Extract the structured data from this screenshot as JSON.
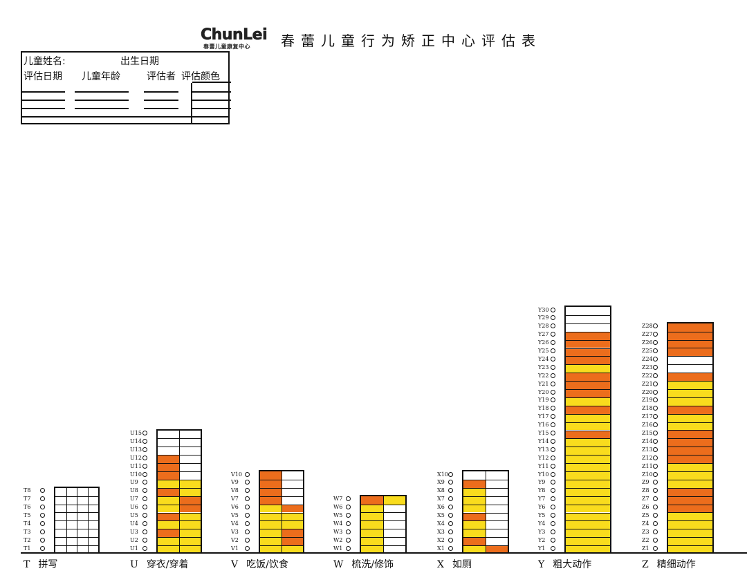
{
  "header": {
    "logo_text": "ChunLei",
    "logo_subtitle": "春蕾儿童康复中心",
    "title": "春蕾儿童行为矫正中心评估表"
  },
  "info": {
    "name_label": "儿童姓名:",
    "birth_label": "出生日期",
    "date_label": "评估日期",
    "age_label": "儿童年龄",
    "assessor_label": "评估者",
    "color_label": "评估颜色"
  },
  "colors": {
    "yellow": "#f9dc1d",
    "orange": "#ec6d1c",
    "white": "#ffffff",
    "line": "#111111"
  },
  "categories": [
    {
      "code": "T",
      "name": "拼写",
      "prefix": "T",
      "count": 8,
      "ncols": 4,
      "fill": []
    },
    {
      "code": "U",
      "name": "穿衣/穿着",
      "prefix": "U",
      "count": 15,
      "ncols": 2,
      "fill": [
        [
          "y",
          "y"
        ],
        [
          "y",
          "y"
        ],
        [
          "o",
          "y"
        ],
        [
          "y",
          "y"
        ],
        [
          "o",
          "y"
        ],
        [
          "y",
          "o"
        ],
        [
          "y",
          "o"
        ],
        [
          "o",
          "y"
        ],
        [
          "y",
          "y"
        ],
        [
          "o",
          "w"
        ],
        [
          "o",
          "w"
        ],
        [
          "o",
          "w"
        ],
        [
          "w",
          "w"
        ],
        [
          "w",
          "w"
        ],
        [
          "w",
          "w"
        ]
      ]
    },
    {
      "code": "V",
      "name": "吃饭/饮食",
      "prefix": "V",
      "count": 10,
      "ncols": 2,
      "fill": [
        [
          "y",
          "y"
        ],
        [
          "y",
          "o"
        ],
        [
          "y",
          "o"
        ],
        [
          "y",
          "y"
        ],
        [
          "y",
          "y"
        ],
        [
          "y",
          "o"
        ],
        [
          "o",
          "w"
        ],
        [
          "o",
          "w"
        ],
        [
          "o",
          "w"
        ],
        [
          "o",
          "w"
        ]
      ]
    },
    {
      "code": "W",
      "name": "梳洗/修饰",
      "prefix": "W",
      "count": 7,
      "ncols": 2,
      "fill": [
        [
          "y",
          "w"
        ],
        [
          "y",
          "w"
        ],
        [
          "y",
          "w"
        ],
        [
          "y",
          "w"
        ],
        [
          "y",
          "w"
        ],
        [
          "y",
          "w"
        ],
        [
          "o",
          "y"
        ]
      ]
    },
    {
      "code": "X",
      "name": "如厕",
      "prefix": "X",
      "count": 10,
      "ncols": 2,
      "fill": [
        [
          "y",
          "o"
        ],
        [
          "o",
          "w"
        ],
        [
          "y",
          "w"
        ],
        [
          "y",
          "w"
        ],
        [
          "o",
          "w"
        ],
        [
          "y",
          "w"
        ],
        [
          "y",
          "w"
        ],
        [
          "y",
          "w"
        ],
        [
          "o",
          "w"
        ],
        [
          "w",
          "w"
        ]
      ]
    },
    {
      "code": "Y",
      "name": "粗大动作",
      "prefix": "Y",
      "count": 30,
      "ncols": 1,
      "fill": [
        "y",
        "y",
        "y",
        "y",
        "y",
        "y",
        "y",
        "y",
        "y",
        "y",
        "y",
        "y",
        "y",
        "y",
        "o",
        "y",
        "y",
        "o",
        "y",
        "o",
        "o",
        "o",
        "y",
        "o",
        "o",
        "o",
        "o",
        "w",
        "w",
        "w"
      ]
    },
    {
      "code": "Z",
      "name": "精细动作",
      "prefix": "Z",
      "count": 28,
      "ncols": 1,
      "fill": [
        "y",
        "y",
        "y",
        "y",
        "y",
        "o",
        "o",
        "o",
        "y",
        "y",
        "y",
        "o",
        "o",
        "o",
        "o",
        "y",
        "y",
        "o",
        "y",
        "y",
        "y",
        "o",
        "w",
        "w",
        "o",
        "o",
        "o",
        "o"
      ]
    }
  ]
}
